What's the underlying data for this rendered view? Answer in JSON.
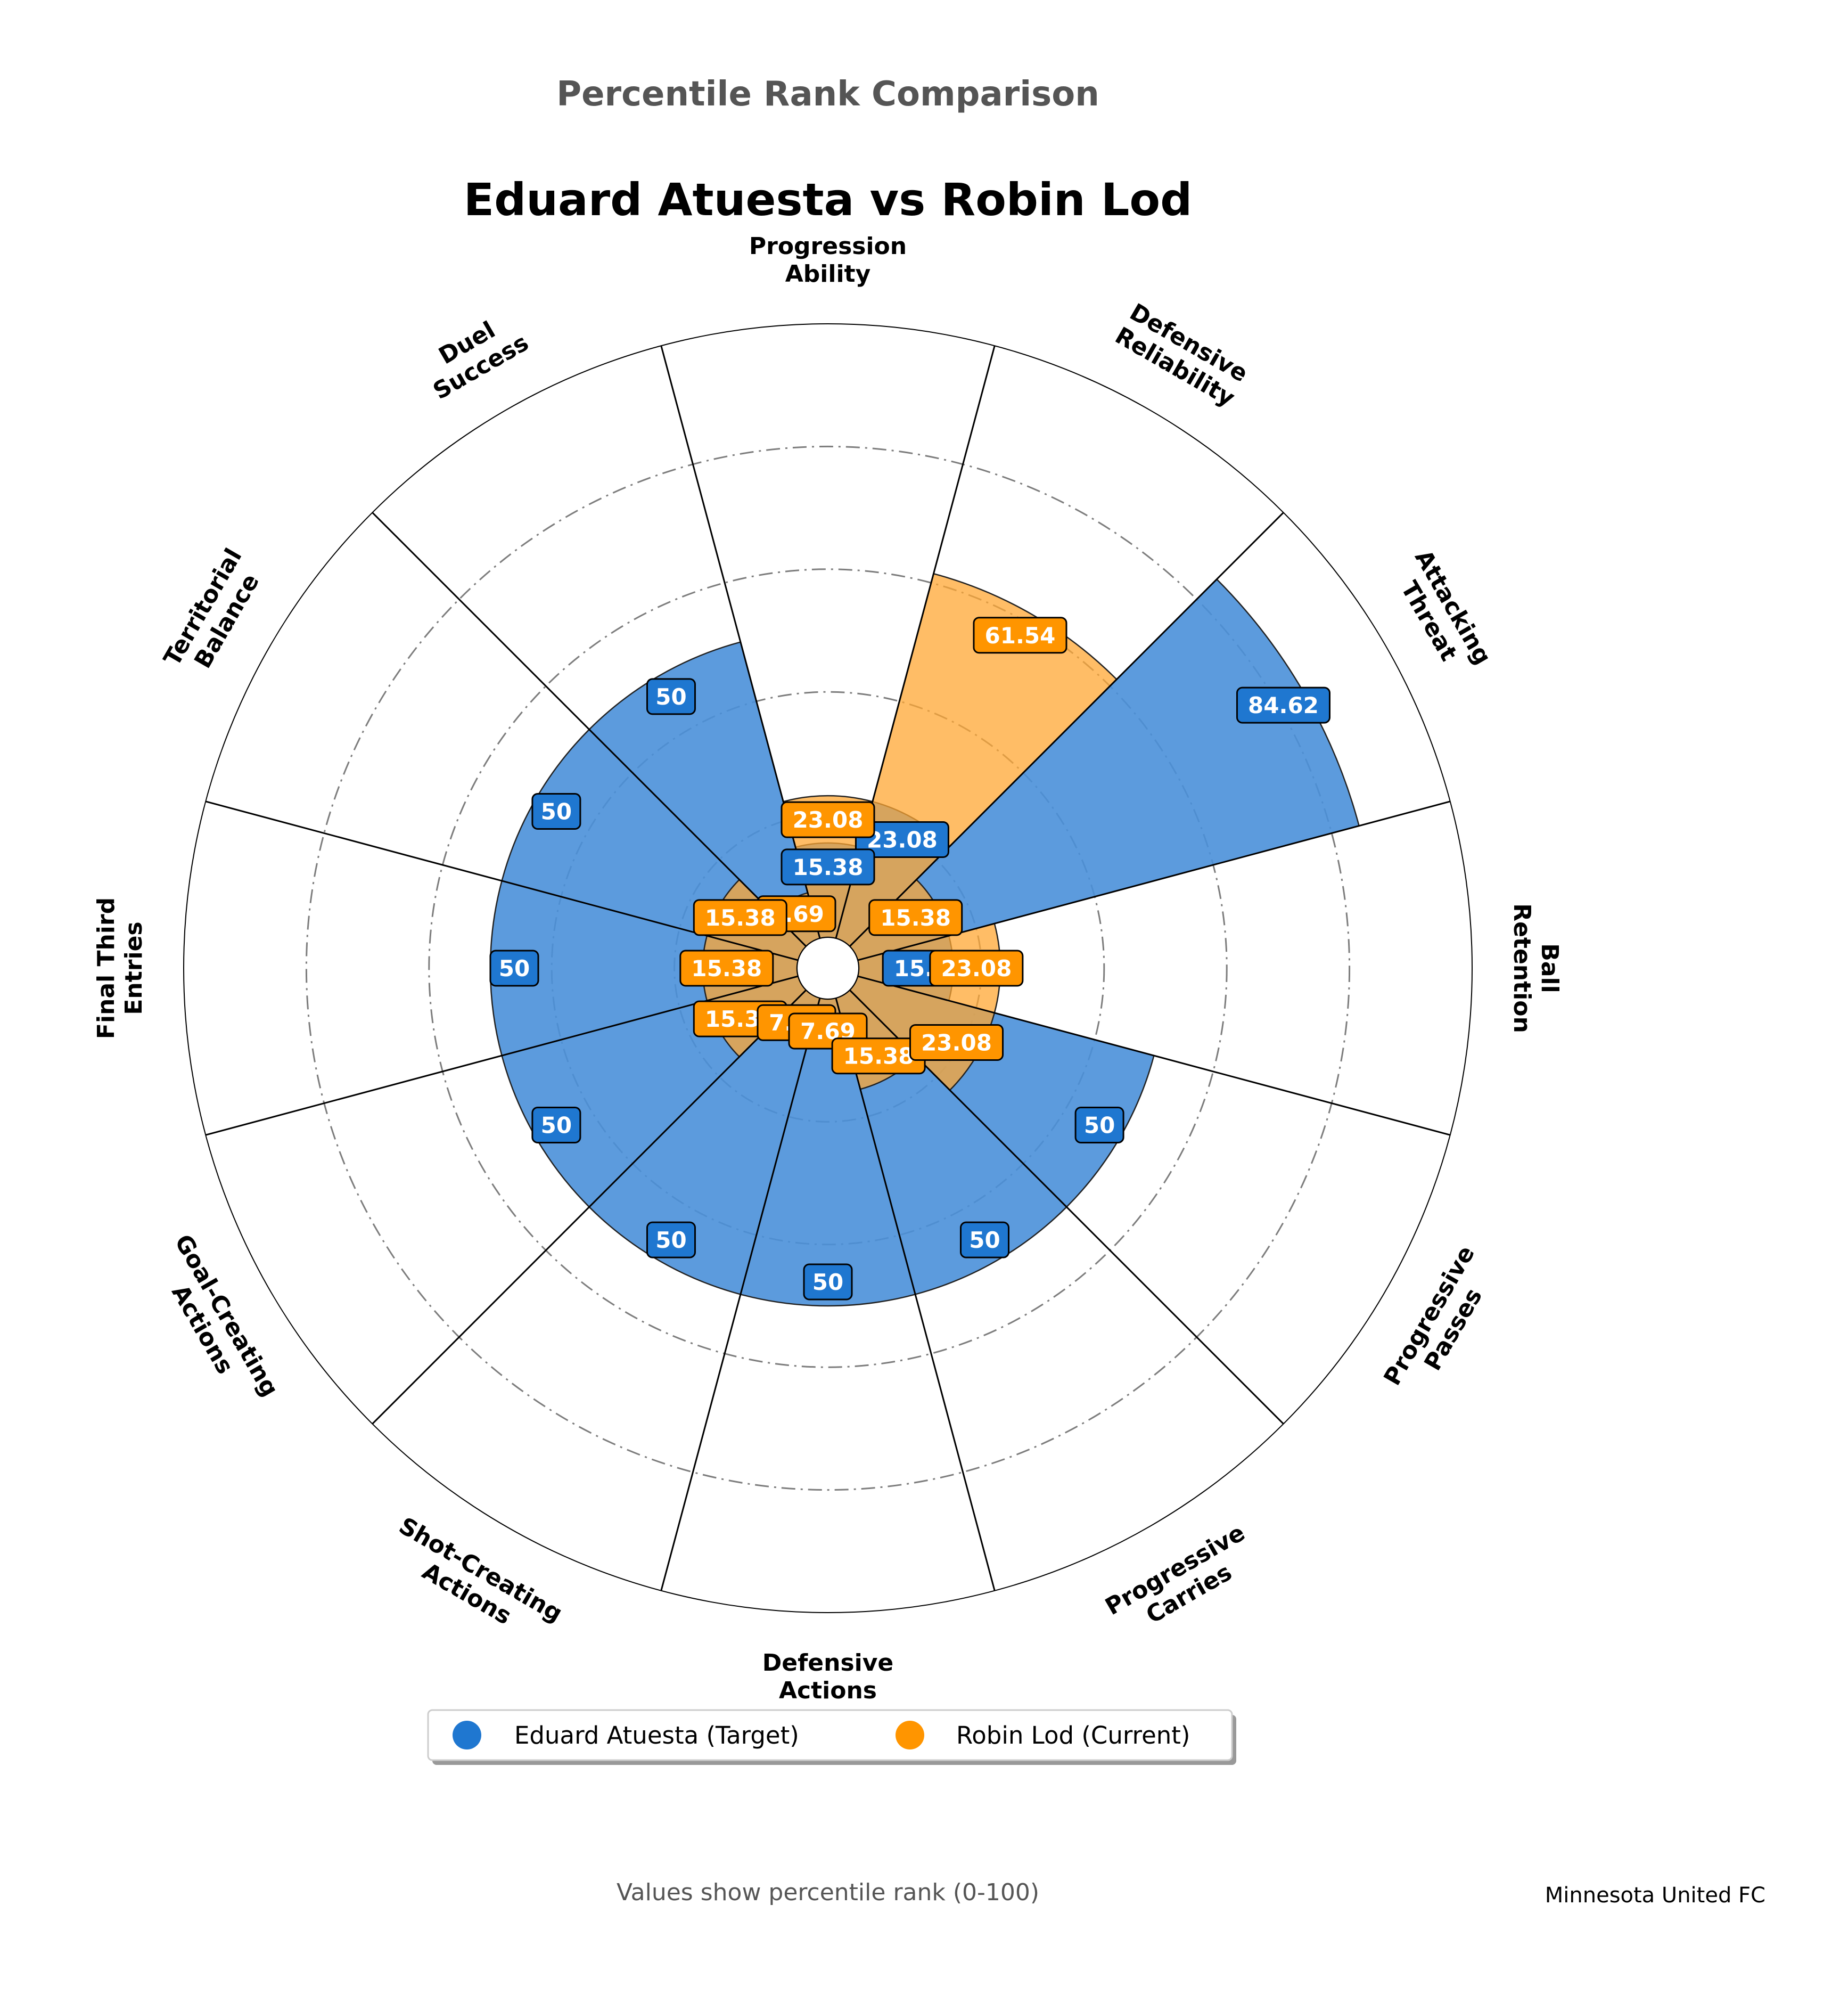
{
  "header": {
    "suptitle": "Percentile Rank Comparison",
    "title": "Eduard Atuesta vs Robin Lod"
  },
  "footer": {
    "note": "Values show percentile rank (0-100)",
    "club": "Minnesota United FC"
  },
  "legend": {
    "placement": "bottom-center",
    "entries": [
      "Eduard Atuesta (Target)",
      "Robin Lod (Current)"
    ]
  },
  "colors": {
    "target": "#1f77d0",
    "target_fill": "#4a90d9",
    "current": "#ff9500",
    "current_fill": "#ffa733",
    "grid": "#666666",
    "suptitle": "#555555"
  },
  "chart_data": {
    "type": "polar-bar",
    "rlim": [
      0,
      100
    ],
    "grid": true,
    "categories": [
      "Ball\nRetention",
      "Attacking\nThreat",
      "Defensive\nReliability",
      "Progression\nAbility",
      "Duel\nSuccess",
      "Territorial\nBalance",
      "Final Third\nEntries",
      "Goal-Creating\nActions",
      "Shot-Creating\nActions",
      "Defensive\nActions",
      "Progressive\nCarries",
      "Progressive\nPasses"
    ],
    "series": [
      {
        "name": "Eduard Atuesta (Target)",
        "values": [
          15.38,
          84.62,
          23.08,
          15.38,
          50,
          50,
          50,
          50,
          50,
          50,
          50,
          50
        ],
        "labels": [
          "15.38",
          "84.62",
          "23.08",
          "15.38",
          "50",
          "50",
          "50",
          "50",
          "50",
          "50",
          "50",
          "50"
        ]
      },
      {
        "name": "Robin Lod (Current)",
        "values": [
          23.08,
          15.38,
          61.54,
          23.08,
          7.69,
          15.38,
          15.38,
          15.38,
          7.69,
          7.69,
          15.38,
          23.08
        ],
        "labels": [
          "23.08",
          "15.38",
          "61.54",
          "23.08",
          "7.69",
          "15.38",
          "15.38",
          "15.38",
          "7.69",
          "7.69",
          "15.38",
          "23.08"
        ]
      }
    ]
  }
}
